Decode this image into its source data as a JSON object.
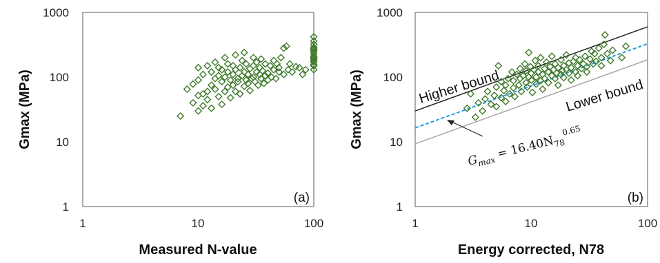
{
  "colors": {
    "marker": "#3f7a2c",
    "fit_line": "#1f9be0",
    "higher_bound": "#222222",
    "lower_bound": "#a6a6a6",
    "frame": "#7f7f7f"
  },
  "chart_data": [
    {
      "type": "scatter",
      "panel_label": "(a)",
      "xlabel": "Measured N-value",
      "ylabel": "Gmax (MPa)",
      "xscale": "log",
      "yscale": "log",
      "xlim": [
        1,
        100
      ],
      "ylim": [
        1,
        1000
      ],
      "xticks": [
        "1",
        "10",
        "100"
      ],
      "yticks": [
        "1",
        "10",
        "100",
        "1000"
      ],
      "grid": false,
      "marker": "open-diamond",
      "points": [
        [
          7,
          25
        ],
        [
          8,
          65
        ],
        [
          9,
          40
        ],
        [
          9,
          78
        ],
        [
          10,
          30
        ],
        [
          10,
          52
        ],
        [
          10,
          90
        ],
        [
          10,
          140
        ],
        [
          11,
          55
        ],
        [
          11,
          110
        ],
        [
          11,
          36
        ],
        [
          12,
          60
        ],
        [
          12,
          150
        ],
        [
          12,
          45
        ],
        [
          13,
          33
        ],
        [
          13,
          75
        ],
        [
          13,
          120
        ],
        [
          14,
          65
        ],
        [
          14,
          95
        ],
        [
          14,
          170
        ],
        [
          15,
          50
        ],
        [
          15,
          105
        ],
        [
          15,
          140
        ],
        [
          16,
          38
        ],
        [
          16,
          85
        ],
        [
          16,
          130
        ],
        [
          17,
          60
        ],
        [
          17,
          200
        ],
        [
          17,
          100
        ],
        [
          18,
          70
        ],
        [
          18,
          120
        ],
        [
          18,
          160
        ],
        [
          19,
          48
        ],
        [
          19,
          90
        ],
        [
          20,
          110
        ],
        [
          20,
          150
        ],
        [
          20,
          75
        ],
        [
          21,
          60
        ],
        [
          21,
          130
        ],
        [
          21,
          220
        ],
        [
          22,
          85
        ],
        [
          22,
          95
        ],
        [
          23,
          55
        ],
        [
          23,
          140
        ],
        [
          24,
          105
        ],
        [
          24,
          180
        ],
        [
          25,
          72
        ],
        [
          25,
          120
        ],
        [
          25,
          240
        ],
        [
          26,
          90
        ],
        [
          26,
          160
        ],
        [
          27,
          80
        ],
        [
          27,
          110
        ],
        [
          28,
          62
        ],
        [
          28,
          135
        ],
        [
          29,
          95
        ],
        [
          30,
          100
        ],
        [
          30,
          150
        ],
        [
          30,
          200
        ],
        [
          31,
          85
        ],
        [
          32,
          120
        ],
        [
          32,
          170
        ],
        [
          33,
          75
        ],
        [
          34,
          110
        ],
        [
          34,
          140
        ],
        [
          35,
          95
        ],
        [
          35,
          190
        ],
        [
          36,
          125
        ],
        [
          37,
          80
        ],
        [
          38,
          105
        ],
        [
          38,
          160
        ],
        [
          40,
          115
        ],
        [
          40,
          90
        ],
        [
          42,
          150
        ],
        [
          43,
          100
        ],
        [
          45,
          130
        ],
        [
          45,
          180
        ],
        [
          47,
          95
        ],
        [
          48,
          160
        ],
        [
          50,
          120
        ],
        [
          50,
          140
        ],
        [
          52,
          200
        ],
        [
          55,
          110
        ],
        [
          55,
          280
        ],
        [
          58,
          300
        ],
        [
          60,
          130
        ],
        [
          62,
          160
        ],
        [
          65,
          120
        ],
        [
          70,
          145
        ],
        [
          75,
          140
        ],
        [
          80,
          110
        ],
        [
          85,
          130
        ],
        [
          100,
          130
        ],
        [
          100,
          150
        ],
        [
          100,
          170
        ],
        [
          100,
          190
        ],
        [
          100,
          210
        ],
        [
          100,
          230
        ],
        [
          100,
          260
        ],
        [
          100,
          290
        ],
        [
          100,
          320
        ],
        [
          100,
          360
        ],
        [
          100,
          420
        ],
        [
          100,
          180
        ],
        [
          100,
          245
        ],
        [
          100,
          200
        ],
        [
          100,
          155
        ],
        [
          100,
          275
        ]
      ]
    },
    {
      "type": "scatter",
      "panel_label": "(b)",
      "xlabel": "Energy corrected, N78",
      "ylabel": "Gmax (MPa)",
      "xscale": "log",
      "yscale": "log",
      "xlim": [
        1,
        100
      ],
      "ylim": [
        1,
        1000
      ],
      "xticks": [
        "1",
        "10",
        "100"
      ],
      "yticks": [
        "1",
        "10",
        "100",
        "1000"
      ],
      "grid": false,
      "marker": "open-diamond",
      "points": [
        [
          2.8,
          33
        ],
        [
          3,
          55
        ],
        [
          3.3,
          24
        ],
        [
          3.5,
          40
        ],
        [
          3.8,
          30
        ],
        [
          4,
          46
        ],
        [
          4.2,
          60
        ],
        [
          4.5,
          38
        ],
        [
          4.8,
          52
        ],
        [
          5,
          70
        ],
        [
          5,
          35
        ],
        [
          5.2,
          150
        ],
        [
          5.5,
          85
        ],
        [
          5.5,
          48
        ],
        [
          5.8,
          62
        ],
        [
          6,
          75
        ],
        [
          6,
          42
        ],
        [
          6.3,
          95
        ],
        [
          6.5,
          55
        ],
        [
          6.8,
          120
        ],
        [
          7,
          68
        ],
        [
          7,
          88
        ],
        [
          7.2,
          50
        ],
        [
          7.5,
          110
        ],
        [
          7.8,
          75
        ],
        [
          8,
          135
        ],
        [
          8,
          95
        ],
        [
          8.2,
          60
        ],
        [
          8.5,
          105
        ],
        [
          8.8,
          160
        ],
        [
          9,
          82
        ],
        [
          9,
          125
        ],
        [
          9.2,
          70
        ],
        [
          9.5,
          240
        ],
        [
          9.5,
          100
        ],
        [
          9.8,
          145
        ],
        [
          10,
          90
        ],
        [
          10,
          115
        ],
        [
          10.2,
          58
        ],
        [
          10.5,
          130
        ],
        [
          10.8,
          180
        ],
        [
          11,
          100
        ],
        [
          11,
          78
        ],
        [
          11.5,
          150
        ],
        [
          11.5,
          120
        ],
        [
          12,
          88
        ],
        [
          12,
          200
        ],
        [
          12.5,
          110
        ],
        [
          12.5,
          65
        ],
        [
          13,
          135
        ],
        [
          13,
          95
        ],
        [
          13.5,
          170
        ],
        [
          14,
          120
        ],
        [
          14,
          82
        ],
        [
          14.5,
          145
        ],
        [
          15,
          105
        ],
        [
          15,
          210
        ],
        [
          15.5,
          130
        ],
        [
          16,
          95
        ],
        [
          16,
          160
        ],
        [
          16.5,
          115
        ],
        [
          17,
          140
        ],
        [
          17,
          75
        ],
        [
          18,
          185
        ],
        [
          18,
          110
        ],
        [
          18.5,
          125
        ],
        [
          19,
          150
        ],
        [
          19,
          98
        ],
        [
          20,
          130
        ],
        [
          20,
          220
        ],
        [
          21,
          115
        ],
        [
          21,
          165
        ],
        [
          22,
          140
        ],
        [
          22,
          90
        ],
        [
          23,
          175
        ],
        [
          24,
          120
        ],
        [
          24,
          200
        ],
        [
          25,
          150
        ],
        [
          25,
          105
        ],
        [
          26,
          185
        ],
        [
          27,
          135
        ],
        [
          28,
          160
        ],
        [
          29,
          210
        ],
        [
          30,
          145
        ],
        [
          30,
          120
        ],
        [
          32,
          190
        ],
        [
          33,
          250
        ],
        [
          34,
          160
        ],
        [
          35,
          230
        ],
        [
          36,
          175
        ],
        [
          38,
          280
        ],
        [
          40,
          200
        ],
        [
          40,
          150
        ],
        [
          42,
          320
        ],
        [
          43,
          450
        ],
        [
          45,
          230
        ],
        [
          48,
          180
        ],
        [
          50,
          260
        ],
        [
          60,
          200
        ],
        [
          65,
          300
        ]
      ],
      "lines": [
        {
          "name": "Higher bound",
          "coef": 30,
          "exp": 0.65,
          "style": "solid"
        },
        {
          "name": "fit",
          "coef": 16.4,
          "exp": 0.65,
          "style": "dashed",
          "label": "G_max = 16.40N_78^0.65"
        },
        {
          "name": "Lower bound",
          "coef": 9.3,
          "exp": 0.65,
          "style": "solid"
        }
      ],
      "annotations": {
        "higher": "Higher bound",
        "lower": "Lower bound",
        "eq_lhs": "G",
        "eq_lhs_sub": "max",
        "eq_mid": " = 16.40N",
        "eq_sub": "78",
        "eq_sup": "0.65"
      }
    }
  ]
}
